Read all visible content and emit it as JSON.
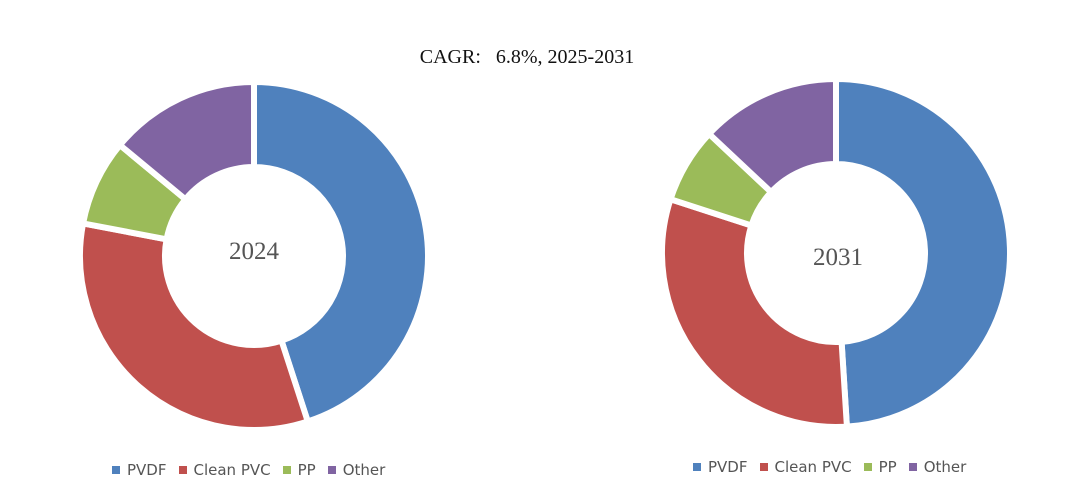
{
  "chart_data": [
    {
      "type": "pie",
      "variant": "donut",
      "title": "CAGR:   6.8%, 2025-2031",
      "center_label": "2024",
      "categories": [
        "PVDF",
        "Clean PVC",
        "PP",
        "Other"
      ],
      "values": [
        45,
        33,
        8,
        14
      ],
      "colors": [
        "#4F81BD",
        "#C0504D",
        "#9BBB59",
        "#8064A2"
      ],
      "legend": "bottom"
    },
    {
      "type": "pie",
      "variant": "donut",
      "center_label": "2031",
      "categories": [
        "PVDF",
        "Clean PVC",
        "PP",
        "Other"
      ],
      "values": [
        49,
        31,
        7,
        13
      ],
      "colors": [
        "#4F81BD",
        "#C0504D",
        "#9BBB59",
        "#8064A2"
      ],
      "legend": "bottom"
    }
  ]
}
